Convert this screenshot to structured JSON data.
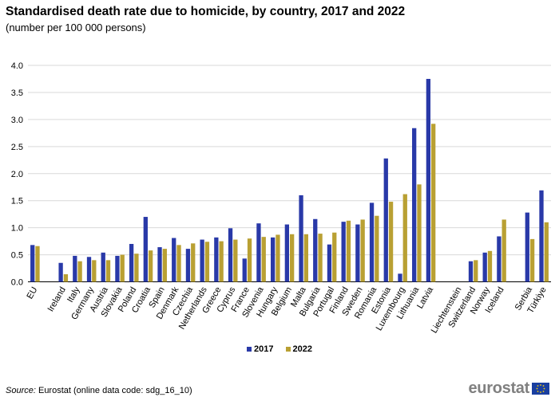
{
  "title": "Standardised death rate due to homicide, by country, 2017 and 2022",
  "subtitle": "(number  per 100 000 persons)",
  "source_label": "Source:",
  "source_text": " Eurostat (online data code: sdg_16_10)",
  "logo_text": "eurostat",
  "colors": {
    "s2017": "#2939A8",
    "s2022": "#B9A033",
    "grid": "#d9d9d9",
    "axis": "#000000"
  },
  "chart_data": {
    "type": "bar",
    "title": "Standardised death rate due to homicide, by country, 2017 and 2022",
    "subtitle": "(number  per 100 000 persons)",
    "xlabel": "",
    "ylabel": "",
    "ylim": [
      0,
      4
    ],
    "yticks": [
      "0.0",
      "0.5",
      "1.0",
      "1.5",
      "2.0",
      "2.5",
      "3.0",
      "3.5",
      "4.0"
    ],
    "grid": true,
    "legend_position": "bottom",
    "categories": [
      "EU",
      "",
      "Ireland",
      "Italy",
      "Germany",
      "Austria",
      "Slovakia",
      "Poland",
      "Croatia",
      "Spain",
      "Denmark",
      "Czechia",
      "Netherlands",
      "Greece",
      "Cyprus",
      "France",
      "Slovenia",
      "Hungary",
      "Belgium",
      "Malta",
      "Bulgaria",
      "Portugal",
      "Finland",
      "Sweden",
      "Romania",
      "Estonia",
      "Luxembourg",
      "Lithuania",
      "Latvia",
      "",
      "Liechtenstein",
      "Switzerland",
      "Norway",
      "Iceland",
      "",
      "Serbia",
      "Türkiye"
    ],
    "series": [
      {
        "name": "2017",
        "values": [
          0.68,
          null,
          0.35,
          0.48,
          0.46,
          0.54,
          0.48,
          0.7,
          1.2,
          0.64,
          0.81,
          0.61,
          0.78,
          0.82,
          0.99,
          0.43,
          1.08,
          0.82,
          1.06,
          1.6,
          1.16,
          0.69,
          1.11,
          1.06,
          1.46,
          2.28,
          0.15,
          2.84,
          3.75,
          null,
          0.0,
          0.38,
          0.54,
          0.84,
          null,
          1.28,
          1.69
        ]
      },
      {
        "name": "2022",
        "values": [
          0.66,
          null,
          0.14,
          0.38,
          0.4,
          0.4,
          0.5,
          0.52,
          0.58,
          0.61,
          0.68,
          0.71,
          0.74,
          0.75,
          0.78,
          0.8,
          0.83,
          0.87,
          0.88,
          0.88,
          0.89,
          0.91,
          1.13,
          1.15,
          1.22,
          1.48,
          1.62,
          1.8,
          2.92,
          null,
          0.0,
          0.4,
          0.57,
          1.15,
          null,
          0.79,
          1.1
        ]
      }
    ]
  }
}
